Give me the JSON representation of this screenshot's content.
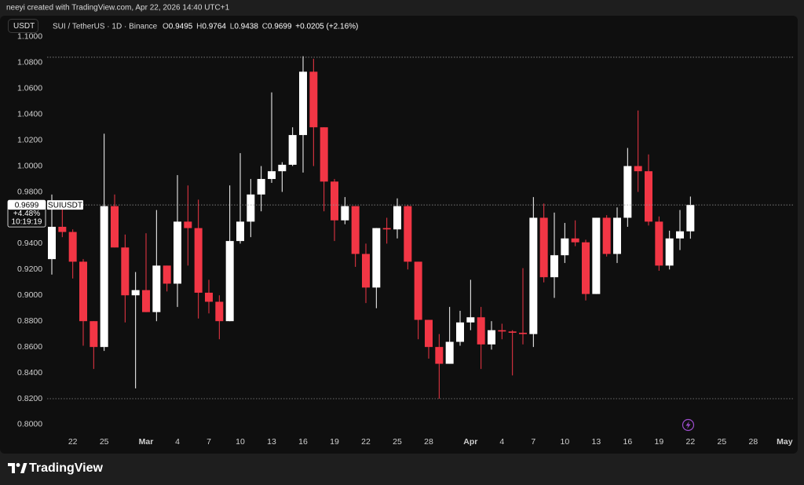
{
  "header": {
    "credit": "neeyi created with TradingView.com, Apr 22, 2026 14:40 UTC+1",
    "currency_button": "USDT"
  },
  "footer": {
    "brand": "TradingView"
  },
  "chart_data": {
    "type": "candlestick",
    "title": "SUI / TetherUS · 1D · Binance",
    "ohlc_letters": [
      "O",
      "H",
      "L",
      "C"
    ],
    "change_label": "+0.0205 (+2.16%)",
    "price_label": {
      "symbol": "SUIUSDT",
      "change": "+4.48%",
      "countdown": "10:19:19"
    },
    "up_color": "#ffffff",
    "down_color": "#f23645",
    "grid": false,
    "hlines": [
      1.0842,
      0.82
    ],
    "x": [
      "2026-02-20",
      "2026-02-21",
      "2026-02-22",
      "2026-02-23",
      "2026-02-24",
      "2026-02-25",
      "2026-02-26",
      "2026-02-27",
      "2026-02-28",
      "2026-03-01",
      "2026-03-02",
      "2026-03-03",
      "2026-03-04",
      "2026-03-05",
      "2026-03-06",
      "2026-03-07",
      "2026-03-08",
      "2026-03-09",
      "2026-03-10",
      "2026-03-11",
      "2026-03-12",
      "2026-03-13",
      "2026-03-14",
      "2026-03-15",
      "2026-03-16",
      "2026-03-17",
      "2026-03-18",
      "2026-03-19",
      "2026-03-20",
      "2026-03-21",
      "2026-03-22",
      "2026-03-23",
      "2026-03-24",
      "2026-03-25",
      "2026-03-26",
      "2026-03-27",
      "2026-03-28",
      "2026-03-29",
      "2026-03-30",
      "2026-03-31",
      "2026-04-01",
      "2026-04-02",
      "2026-04-03",
      "2026-04-04",
      "2026-04-05",
      "2026-04-06",
      "2026-04-07",
      "2026-04-08",
      "2026-04-09",
      "2026-04-10",
      "2026-04-11",
      "2026-04-12",
      "2026-04-13",
      "2026-04-14",
      "2026-04-15",
      "2026-04-16",
      "2026-04-17",
      "2026-04-18",
      "2026-04-19",
      "2026-04-20",
      "2026-04-21",
      "2026-04-22"
    ],
    "open": [
      0.928,
      0.953,
      0.949,
      0.926,
      0.88,
      0.86,
      0.969,
      0.937,
      0.9,
      0.904,
      0.887,
      0.923,
      0.909,
      0.957,
      0.952,
      0.902,
      0.895,
      0.88,
      0.942,
      0.957,
      0.978,
      0.99,
      0.996,
      1.001,
      1.024,
      1.073,
      1.03,
      0.988,
      0.958,
      0.969,
      0.932,
      0.906,
      0.952,
      0.951,
      0.969,
      0.926,
      0.881,
      0.86,
      0.847,
      0.864,
      0.879,
      0.883,
      0.862,
      0.873,
      0.872,
      0.871,
      0.87,
      0.96,
      0.914,
      0.931,
      0.944,
      0.941,
      0.901,
      0.96,
      0.932,
      0.96,
      1.0,
      0.996,
      0.957,
      0.923,
      0.944,
      0.9495
    ],
    "high": [
      0.978,
      0.967,
      0.951,
      0.928,
      0.88,
      1.025,
      0.978,
      0.947,
      0.918,
      0.948,
      0.966,
      0.923,
      0.993,
      0.985,
      0.974,
      0.912,
      0.9,
      0.985,
      1.01,
      0.99,
      1.0,
      1.057,
      1.003,
      1.03,
      1.085,
      1.083,
      1.03,
      0.99,
      0.976,
      0.969,
      0.94,
      0.952,
      0.96,
      0.975,
      0.97,
      0.926,
      0.881,
      0.87,
      0.891,
      0.888,
      0.912,
      0.891,
      0.88,
      0.878,
      0.873,
      0.921,
      0.976,
      0.971,
      0.964,
      0.956,
      0.958,
      0.943,
      0.96,
      0.962,
      0.968,
      1.014,
      1.043,
      1.009,
      0.961,
      0.95,
      0.966,
      0.9764
    ],
    "low": [
      0.916,
      0.945,
      0.913,
      0.861,
      0.843,
      0.857,
      0.937,
      0.879,
      0.828,
      0.887,
      0.88,
      0.903,
      0.891,
      0.923,
      0.882,
      0.886,
      0.866,
      0.88,
      0.94,
      0.945,
      0.965,
      0.987,
      0.98,
      1.0,
      0.995,
      1.0,
      0.965,
      0.942,
      0.955,
      0.922,
      0.894,
      0.89,
      0.94,
      0.944,
      0.92,
      0.866,
      0.851,
      0.82,
      0.847,
      0.861,
      0.873,
      0.843,
      0.858,
      0.866,
      0.838,
      0.862,
      0.86,
      0.91,
      0.898,
      0.925,
      0.938,
      0.896,
      0.901,
      0.93,
      0.925,
      0.953,
      0.98,
      0.954,
      0.919,
      0.92,
      0.935,
      0.9438
    ],
    "close": [
      0.953,
      0.949,
      0.926,
      0.88,
      0.86,
      0.969,
      0.937,
      0.9,
      0.904,
      0.887,
      0.923,
      0.909,
      0.957,
      0.952,
      0.902,
      0.895,
      0.88,
      0.942,
      0.957,
      0.978,
      0.99,
      0.996,
      1.001,
      1.024,
      1.073,
      1.03,
      0.988,
      0.958,
      0.969,
      0.932,
      0.906,
      0.952,
      0.951,
      0.969,
      0.926,
      0.881,
      0.86,
      0.847,
      0.864,
      0.879,
      0.883,
      0.862,
      0.873,
      0.872,
      0.871,
      0.87,
      0.96,
      0.914,
      0.931,
      0.944,
      0.941,
      0.901,
      0.96,
      0.932,
      0.96,
      1.0,
      0.996,
      0.957,
      0.923,
      0.944,
      0.9495,
      0.9699
    ],
    "xlim": [
      "2026-02-20",
      "2026-05-02"
    ],
    "xticks": [
      {
        "value": "2026-02-22",
        "label": "22"
      },
      {
        "value": "2026-02-25",
        "label": "25"
      },
      {
        "value": "2026-03-01",
        "label": "Mar"
      },
      {
        "value": "2026-03-04",
        "label": "4"
      },
      {
        "value": "2026-03-07",
        "label": "7"
      },
      {
        "value": "2026-03-10",
        "label": "10"
      },
      {
        "value": "2026-03-13",
        "label": "13"
      },
      {
        "value": "2026-03-16",
        "label": "16"
      },
      {
        "value": "2026-03-19",
        "label": "19"
      },
      {
        "value": "2026-03-22",
        "label": "22"
      },
      {
        "value": "2026-03-25",
        "label": "25"
      },
      {
        "value": "2026-03-28",
        "label": "28"
      },
      {
        "value": "2026-04-01",
        "label": "Apr"
      },
      {
        "value": "2026-04-04",
        "label": "4"
      },
      {
        "value": "2026-04-07",
        "label": "7"
      },
      {
        "value": "2026-04-10",
        "label": "10"
      },
      {
        "value": "2026-04-13",
        "label": "13"
      },
      {
        "value": "2026-04-16",
        "label": "16"
      },
      {
        "value": "2026-04-19",
        "label": "19"
      },
      {
        "value": "2026-04-22",
        "label": "22"
      },
      {
        "value": "2026-04-25",
        "label": "25"
      },
      {
        "value": "2026-04-28",
        "label": "28"
      },
      {
        "value": "2026-05-01",
        "label": "May"
      }
    ],
    "ylim": [
      0.7945,
      1.1042
    ],
    "yticks": [
      {
        "value": 0.8,
        "label": "0.8000"
      },
      {
        "value": 0.82,
        "label": "0.8200"
      },
      {
        "value": 0.84,
        "label": "0.8400"
      },
      {
        "value": 0.86,
        "label": "0.8600"
      },
      {
        "value": 0.88,
        "label": "0.8800"
      },
      {
        "value": 0.9,
        "label": "0.9000"
      },
      {
        "value": 0.92,
        "label": "0.9200"
      },
      {
        "value": 0.94,
        "label": "0.9400"
      },
      {
        "value": 0.96,
        "label": "0.9600"
      },
      {
        "value": 0.98,
        "label": "0.9800"
      },
      {
        "value": 1.0,
        "label": "1.0000"
      },
      {
        "value": 1.02,
        "label": "1.0200"
      },
      {
        "value": 1.04,
        "label": "1.0400"
      },
      {
        "value": 1.06,
        "label": "1.0600"
      },
      {
        "value": 1.08,
        "label": "1.0800"
      },
      {
        "value": 1.1,
        "label": "1.1000"
      }
    ]
  }
}
